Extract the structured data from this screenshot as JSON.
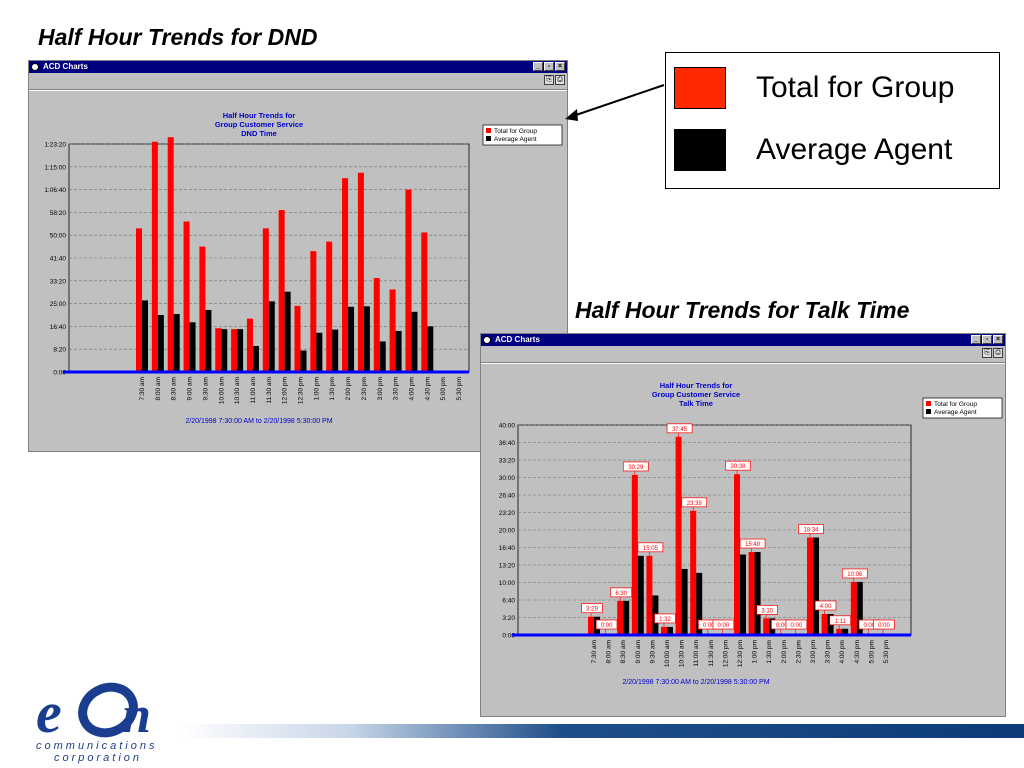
{
  "slide": {
    "title_dnd": "Half Hour Trends for DND",
    "title_talk": "Half Hour Trends for Talk Time"
  },
  "legend_box": {
    "items": [
      {
        "label": "Total for Group",
        "color": "#ff2a00"
      },
      {
        "label": "Average Agent",
        "color": "#000000"
      }
    ]
  },
  "window_dnd": {
    "title": "ACD Charts"
  },
  "window_talk": {
    "title": "ACD Charts"
  },
  "logo": {
    "name": "eOn",
    "tagline1": "communications",
    "tagline2": "corporation",
    "color": "#1a3d8f"
  },
  "chart_data": [
    {
      "type": "bar",
      "title": [
        "Half Hour Trends for",
        "Group Customer Service",
        "DND Time"
      ],
      "xlabel": "",
      "ylabel": "",
      "date_range": "2/20/1998 7:30:00 AM  to  2/20/1998 5:30:00 PM",
      "y_ticks": [
        "0:00",
        "8:20",
        "16:40",
        "25:00",
        "33:20",
        "41:40",
        "50:00",
        "58:20",
        "1:06:40",
        "1:15:00",
        "1:23:20"
      ],
      "y_tick_values": [
        0,
        500,
        1000,
        1500,
        2000,
        2500,
        3000,
        3500,
        4000,
        4500,
        5000
      ],
      "ylim": [
        0,
        5000
      ],
      "categories": [
        "7:30 am",
        "8:00 am",
        "8:30 am",
        "9:00 am",
        "9:30 am",
        "10:00 am",
        "10:30 am",
        "11:00 am",
        "11:30 am",
        "12:00 pm",
        "12:30 pm",
        "1:00 pm",
        "1:30 pm",
        "2:00 pm",
        "2:30 pm",
        "3:00 pm",
        "3:30 pm",
        "4:00 pm",
        "4:30 pm",
        "5:00 pm",
        "5:30 pm"
      ],
      "legend": [
        "Total for Group",
        "Average Agent"
      ],
      "series": [
        {
          "name": "Total for Group",
          "color": "#ff0000",
          "values": [
            3150,
            5050,
            5150,
            3300,
            2750,
            960,
            940,
            1170,
            3150,
            3550,
            1450,
            2650,
            2860,
            4250,
            4370,
            2060,
            1810,
            4000,
            3060,
            0,
            0
          ]
        },
        {
          "name": "Average Agent",
          "color": "#000000",
          "values": [
            1570,
            1250,
            1270,
            1090,
            1360,
            940,
            940,
            570,
            1550,
            1760,
            470,
            860,
            930,
            1430,
            1440,
            670,
            900,
            1320,
            1000,
            0,
            0
          ]
        }
      ],
      "grid": true,
      "legend_position": "top-right"
    },
    {
      "type": "bar",
      "title": [
        "Half Hour Trends for",
        "Group Customer Service",
        "Talk Time"
      ],
      "xlabel": "",
      "ylabel": "",
      "date_range": "2/20/1998 7:30:00 AM  to  2/20/1998 5:30:00 PM",
      "y_ticks": [
        "0:00",
        "3:20",
        "6:40",
        "10:00",
        "13:20",
        "16:40",
        "20:00",
        "23:20",
        "26:40",
        "30:00",
        "33:20",
        "36:40",
        "40:00"
      ],
      "y_tick_values": [
        0,
        200,
        400,
        600,
        800,
        1000,
        1200,
        1400,
        1600,
        1800,
        2000,
        2200,
        2400
      ],
      "ylim": [
        0,
        2400
      ],
      "categories": [
        "7:30 am",
        "8:00 am",
        "8:30 am",
        "9:00 am",
        "9:30 am",
        "10:00 am",
        "10:30 am",
        "11:00 am",
        "11:30 am",
        "12:00 pm",
        "12:30 pm",
        "1:00 pm",
        "1:30 pm",
        "2:00 pm",
        "2:30 pm",
        "3:00 pm",
        "3:30 pm",
        "4:00 pm",
        "4:30 pm",
        "5:00 pm",
        "5:30 pm"
      ],
      "legend": [
        "Total for Group",
        "Average Agent"
      ],
      "series": [
        {
          "name": "Total for Group",
          "color": "#ff0000",
          "values": [
            209,
            0,
            390,
            1829,
            905,
            92,
            2265,
            1419,
            0,
            0,
            1838,
            948,
            190,
            0,
            0,
            1114,
            240,
            71,
            606,
            0,
            0
          ],
          "labels": [
            "3:29",
            "0:00",
            "6:30",
            "30:29",
            "15:05",
            "1:32",
            "37:45",
            "23:39",
            "0:00",
            "0:00",
            "30:38",
            "15:48",
            "3:10",
            "0:00",
            "0:00",
            "18:34",
            "4:00",
            "1:11",
            "10:06",
            "0:00",
            "0:00"
          ]
        },
        {
          "name": "Average Agent",
          "color": "#000000",
          "values": [
            209,
            0,
            390,
            905,
            452,
            92,
            755,
            710,
            0,
            0,
            919,
            948,
            190,
            0,
            0,
            1114,
            240,
            71,
            606,
            0,
            0
          ]
        }
      ],
      "grid": true,
      "legend_position": "top-right"
    }
  ]
}
